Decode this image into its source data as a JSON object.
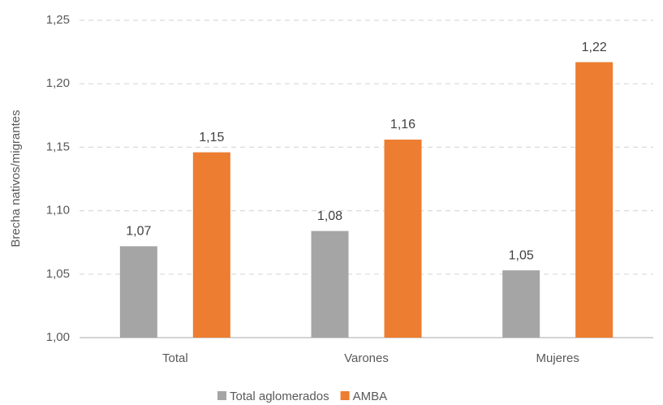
{
  "chart_data": {
    "type": "bar",
    "y_label": "Brecha nativos/migrantes",
    "categories": [
      "Total",
      "Varones",
      "Mujeres"
    ],
    "series": [
      {
        "name": "Total aglomerados",
        "color": "#a5a5a5",
        "values": [
          1.072,
          1.084,
          1.053
        ],
        "value_labels": [
          "1,07",
          "1,08",
          "1,05"
        ]
      },
      {
        "name": "AMBA",
        "color": "#ed7d31",
        "values": [
          1.146,
          1.156,
          1.217
        ],
        "value_labels": [
          "1,15",
          "1,16",
          "1,22"
        ]
      }
    ],
    "ylim": [
      1.0,
      1.25
    ],
    "yticks": [
      {
        "value": 1.0,
        "label": "1,00"
      },
      {
        "value": 1.05,
        "label": "1,05"
      },
      {
        "value": 1.1,
        "label": "1,10"
      },
      {
        "value": 1.15,
        "label": "1,15"
      },
      {
        "value": 1.2,
        "label": "1,20"
      },
      {
        "value": 1.25,
        "label": "1,25"
      }
    ],
    "grid": true
  }
}
